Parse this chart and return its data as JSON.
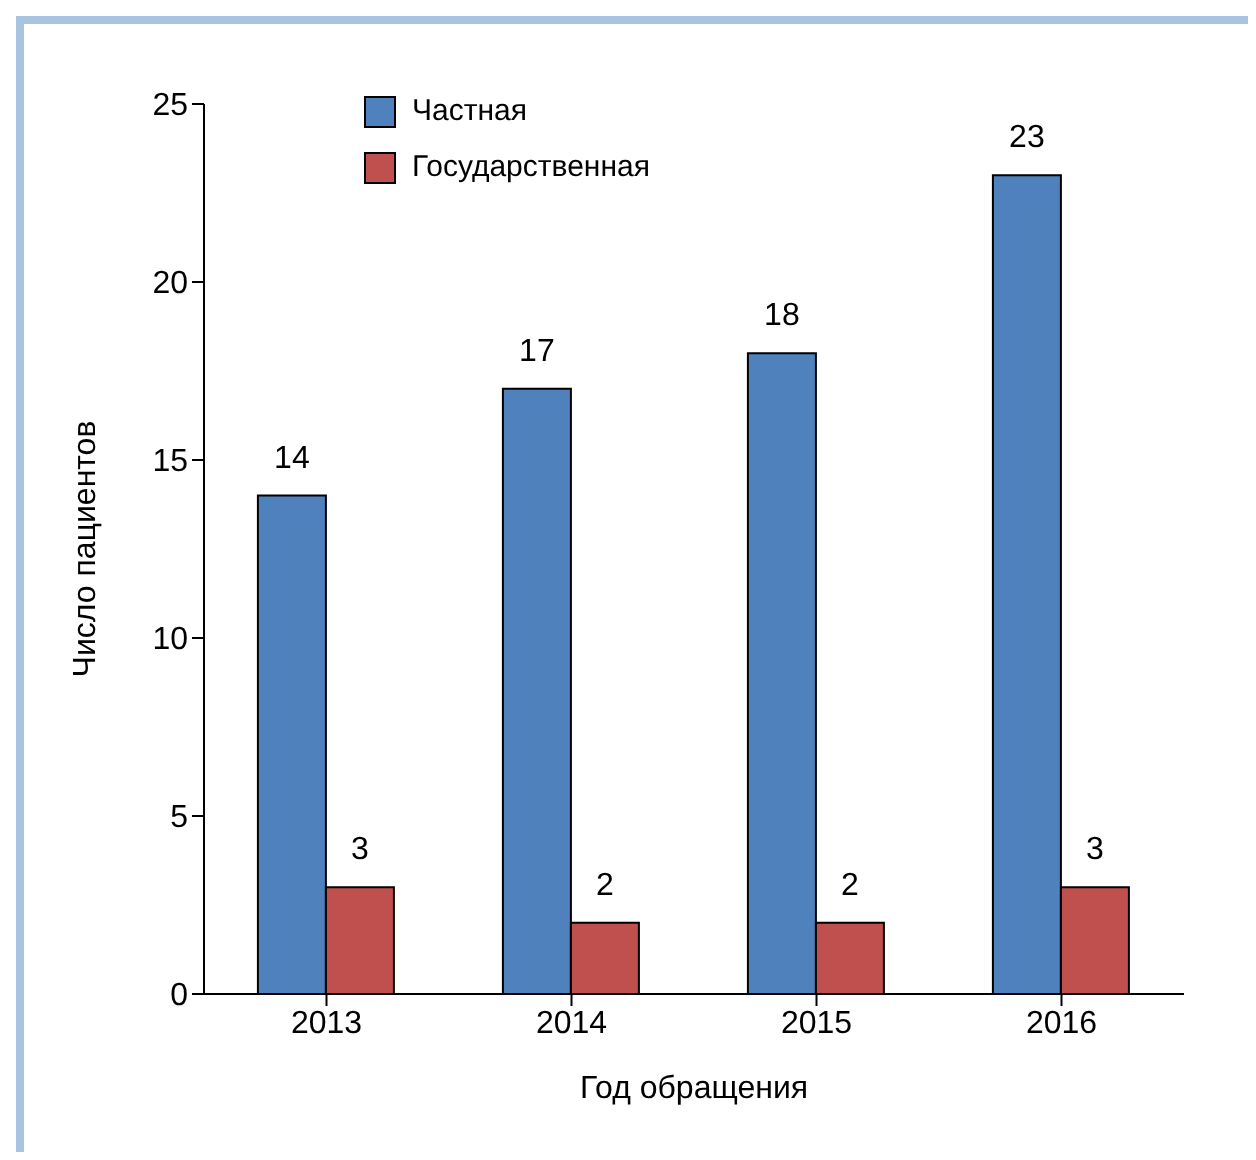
{
  "chart_data": {
    "type": "bar",
    "xlabel": "Год обращения",
    "ylabel": "Число пациентов",
    "categories": [
      "2013",
      "2014",
      "2015",
      "2016"
    ],
    "series": [
      {
        "name": "Частная",
        "color": "#4f81bd",
        "values": [
          14,
          17,
          18,
          23
        ]
      },
      {
        "name": "Государственная",
        "color": "#c0504d",
        "values": [
          3,
          2,
          2,
          3
        ]
      }
    ],
    "ylim": [
      0,
      25
    ],
    "yticks": [
      0,
      5,
      10,
      15,
      20,
      25
    ],
    "grid": false,
    "legend": "top left",
    "data_labels": true
  }
}
